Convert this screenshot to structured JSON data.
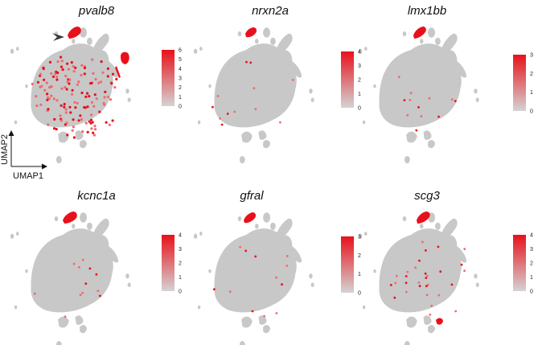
{
  "chart_data": [
    {
      "type": "scatter",
      "title": "pvalb8",
      "colorbar": {
        "min": 0,
        "max": 6,
        "ticks": [
          0,
          1,
          2,
          3,
          4,
          5,
          6
        ]
      },
      "expression_density": "high"
    },
    {
      "type": "scatter",
      "title": "nrxn2a",
      "colorbar": {
        "min": 0,
        "max": 4,
        "ticks": [
          0,
          1,
          2,
          3,
          4
        ]
      },
      "expression_density": "low"
    },
    {
      "type": "scatter",
      "title": "lmx1bb",
      "colorbar": {
        "min": 0,
        "max": 3,
        "ticks": [
          0,
          1,
          2,
          3
        ]
      },
      "expression_density": "low"
    },
    {
      "type": "scatter",
      "title": "kcnc1a",
      "colorbar": {
        "min": 0,
        "max": 4,
        "ticks": [
          0,
          1,
          2,
          3,
          4
        ]
      },
      "expression_density": "low"
    },
    {
      "type": "scatter",
      "title": "gfral",
      "colorbar": {
        "min": 0,
        "max": 3,
        "ticks": [
          0,
          1,
          2,
          3
        ]
      },
      "expression_density": "low"
    },
    {
      "type": "scatter",
      "title": "scg3",
      "colorbar": {
        "min": 0,
        "max": 4,
        "ticks": [
          0,
          1,
          2,
          3,
          4
        ]
      },
      "expression_density": "medium"
    }
  ],
  "axes": {
    "xlabel": "UMAP1",
    "ylabel": "UMAP2"
  },
  "colors": {
    "background_cells": "#c8c8c8",
    "low": "#d4d4d4",
    "high": "#e8111b"
  },
  "annotation": {
    "arrowhead": "pvalb8 cluster marker"
  }
}
